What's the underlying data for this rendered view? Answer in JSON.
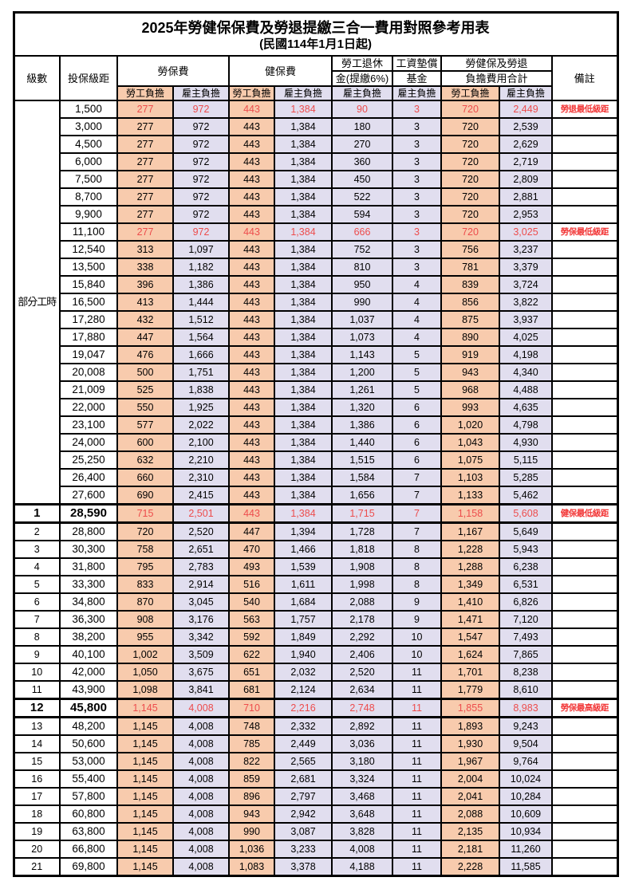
{
  "title": "2025年勞健保保費及勞退提繳三合一費用對照參考用表",
  "subtitle": "(民國114年1月1日起)",
  "headers": {
    "level": "級數",
    "bracket": "投保級距",
    "labor": "勞保費",
    "health": "健保費",
    "pension_line1": "勞工退休",
    "pension_line2": "金(提繳6%)",
    "fund_line1": "工資墊償",
    "fund_line2": "基金",
    "total_line1": "勞健保及勞退",
    "total_line2": "負擔費用合計",
    "note": "備註",
    "employee": "勞工負擔",
    "employer": "雇主負擔"
  },
  "part_time_label": "部分工時",
  "part_time_rowspan": 23,
  "colors": {
    "employee_bg": "#F8CBAD",
    "employer_bg": "#E1DEEF",
    "highlight_value_red": "#ED4C4C",
    "note_red": "#F23535",
    "border_black": "#000000"
  },
  "rows": [
    {
      "level": "",
      "bracket": "1,500",
      "values": [
        "277",
        "972",
        "443",
        "1,384",
        "90",
        "3",
        "720",
        "2,449"
      ],
      "note": "勞退最低級距",
      "red": true,
      "thick": false
    },
    {
      "level": "",
      "bracket": "3,000",
      "values": [
        "277",
        "972",
        "443",
        "1,384",
        "180",
        "3",
        "720",
        "2,539"
      ],
      "note": "",
      "red": false,
      "thick": false
    },
    {
      "level": "",
      "bracket": "4,500",
      "values": [
        "277",
        "972",
        "443",
        "1,384",
        "270",
        "3",
        "720",
        "2,629"
      ],
      "note": "",
      "red": false,
      "thick": false
    },
    {
      "level": "",
      "bracket": "6,000",
      "values": [
        "277",
        "972",
        "443",
        "1,384",
        "360",
        "3",
        "720",
        "2,719"
      ],
      "note": "",
      "red": false,
      "thick": false
    },
    {
      "level": "",
      "bracket": "7,500",
      "values": [
        "277",
        "972",
        "443",
        "1,384",
        "450",
        "3",
        "720",
        "2,809"
      ],
      "note": "",
      "red": false,
      "thick": false
    },
    {
      "level": "",
      "bracket": "8,700",
      "values": [
        "277",
        "972",
        "443",
        "1,384",
        "522",
        "3",
        "720",
        "2,881"
      ],
      "note": "",
      "red": false,
      "thick": false
    },
    {
      "level": "",
      "bracket": "9,900",
      "values": [
        "277",
        "972",
        "443",
        "1,384",
        "594",
        "3",
        "720",
        "2,953"
      ],
      "note": "",
      "red": false,
      "thick": false
    },
    {
      "level": "",
      "bracket": "11,100",
      "values": [
        "277",
        "972",
        "443",
        "1,384",
        "666",
        "3",
        "720",
        "3,025"
      ],
      "note": "勞保最低級距",
      "red": true,
      "thick": false
    },
    {
      "level": "",
      "bracket": "12,540",
      "values": [
        "313",
        "1,097",
        "443",
        "1,384",
        "752",
        "3",
        "756",
        "3,237"
      ],
      "note": "",
      "red": false,
      "thick": false
    },
    {
      "level": "",
      "bracket": "13,500",
      "values": [
        "338",
        "1,182",
        "443",
        "1,384",
        "810",
        "3",
        "781",
        "3,379"
      ],
      "note": "",
      "red": false,
      "thick": false
    },
    {
      "level": "",
      "bracket": "15,840",
      "values": [
        "396",
        "1,386",
        "443",
        "1,384",
        "950",
        "4",
        "839",
        "3,724"
      ],
      "note": "",
      "red": false,
      "thick": false
    },
    {
      "level": "",
      "bracket": "16,500",
      "values": [
        "413",
        "1,444",
        "443",
        "1,384",
        "990",
        "4",
        "856",
        "3,822"
      ],
      "note": "",
      "red": false,
      "thick": false
    },
    {
      "level": "",
      "bracket": "17,280",
      "values": [
        "432",
        "1,512",
        "443",
        "1,384",
        "1,037",
        "4",
        "875",
        "3,937"
      ],
      "note": "",
      "red": false,
      "thick": false
    },
    {
      "level": "",
      "bracket": "17,880",
      "values": [
        "447",
        "1,564",
        "443",
        "1,384",
        "1,073",
        "4",
        "890",
        "4,025"
      ],
      "note": "",
      "red": false,
      "thick": false
    },
    {
      "level": "",
      "bracket": "19,047",
      "values": [
        "476",
        "1,666",
        "443",
        "1,384",
        "1,143",
        "5",
        "919",
        "4,198"
      ],
      "note": "",
      "red": false,
      "thick": false
    },
    {
      "level": "",
      "bracket": "20,008",
      "values": [
        "500",
        "1,751",
        "443",
        "1,384",
        "1,200",
        "5",
        "943",
        "4,340"
      ],
      "note": "",
      "red": false,
      "thick": false
    },
    {
      "level": "",
      "bracket": "21,009",
      "values": [
        "525",
        "1,838",
        "443",
        "1,384",
        "1,261",
        "5",
        "968",
        "4,488"
      ],
      "note": "",
      "red": false,
      "thick": false
    },
    {
      "level": "",
      "bracket": "22,000",
      "values": [
        "550",
        "1,925",
        "443",
        "1,384",
        "1,320",
        "6",
        "993",
        "4,635"
      ],
      "note": "",
      "red": false,
      "thick": false
    },
    {
      "level": "",
      "bracket": "23,100",
      "values": [
        "577",
        "2,022",
        "443",
        "1,384",
        "1,386",
        "6",
        "1,020",
        "4,798"
      ],
      "note": "",
      "red": false,
      "thick": false
    },
    {
      "level": "",
      "bracket": "24,000",
      "values": [
        "600",
        "2,100",
        "443",
        "1,384",
        "1,440",
        "6",
        "1,043",
        "4,930"
      ],
      "note": "",
      "red": false,
      "thick": false
    },
    {
      "level": "",
      "bracket": "25,250",
      "values": [
        "632",
        "2,210",
        "443",
        "1,384",
        "1,515",
        "6",
        "1,075",
        "5,115"
      ],
      "note": "",
      "red": false,
      "thick": false
    },
    {
      "level": "",
      "bracket": "26,400",
      "values": [
        "660",
        "2,310",
        "443",
        "1,384",
        "1,584",
        "7",
        "1,103",
        "5,285"
      ],
      "note": "",
      "red": false,
      "thick": false
    },
    {
      "level": "",
      "bracket": "27,600",
      "values": [
        "690",
        "2,415",
        "443",
        "1,384",
        "1,656",
        "7",
        "1,133",
        "5,462"
      ],
      "note": "",
      "red": false,
      "thick": false
    },
    {
      "level": "1",
      "bracket": "28,590",
      "values": [
        "715",
        "2,501",
        "443",
        "1,384",
        "1,715",
        "7",
        "1,158",
        "5,608"
      ],
      "note": "健保最低級距",
      "red": true,
      "thick": true
    },
    {
      "level": "2",
      "bracket": "28,800",
      "values": [
        "720",
        "2,520",
        "447",
        "1,394",
        "1,728",
        "7",
        "1,167",
        "5,649"
      ],
      "note": "",
      "red": false,
      "thick": false
    },
    {
      "level": "3",
      "bracket": "30,300",
      "values": [
        "758",
        "2,651",
        "470",
        "1,466",
        "1,818",
        "8",
        "1,228",
        "5,943"
      ],
      "note": "",
      "red": false,
      "thick": false
    },
    {
      "level": "4",
      "bracket": "31,800",
      "values": [
        "795",
        "2,783",
        "493",
        "1,539",
        "1,908",
        "8",
        "1,288",
        "6,238"
      ],
      "note": "",
      "red": false,
      "thick": false
    },
    {
      "level": "5",
      "bracket": "33,300",
      "values": [
        "833",
        "2,914",
        "516",
        "1,611",
        "1,998",
        "8",
        "1,349",
        "6,531"
      ],
      "note": "",
      "red": false,
      "thick": false
    },
    {
      "level": "6",
      "bracket": "34,800",
      "values": [
        "870",
        "3,045",
        "540",
        "1,684",
        "2,088",
        "9",
        "1,410",
        "6,826"
      ],
      "note": "",
      "red": false,
      "thick": false
    },
    {
      "level": "7",
      "bracket": "36,300",
      "values": [
        "908",
        "3,176",
        "563",
        "1,757",
        "2,178",
        "9",
        "1,471",
        "7,120"
      ],
      "note": "",
      "red": false,
      "thick": false
    },
    {
      "level": "8",
      "bracket": "38,200",
      "values": [
        "955",
        "3,342",
        "592",
        "1,849",
        "2,292",
        "10",
        "1,547",
        "7,493"
      ],
      "note": "",
      "red": false,
      "thick": false
    },
    {
      "level": "9",
      "bracket": "40,100",
      "values": [
        "1,002",
        "3,509",
        "622",
        "1,940",
        "2,406",
        "10",
        "1,624",
        "7,865"
      ],
      "note": "",
      "red": false,
      "thick": false
    },
    {
      "level": "10",
      "bracket": "42,000",
      "values": [
        "1,050",
        "3,675",
        "651",
        "2,032",
        "2,520",
        "11",
        "1,701",
        "8,238"
      ],
      "note": "",
      "red": false,
      "thick": false
    },
    {
      "level": "11",
      "bracket": "43,900",
      "values": [
        "1,098",
        "3,841",
        "681",
        "2,124",
        "2,634",
        "11",
        "1,779",
        "8,610"
      ],
      "note": "",
      "red": false,
      "thick": false
    },
    {
      "level": "12",
      "bracket": "45,800",
      "values": [
        "1,145",
        "4,008",
        "710",
        "2,216",
        "2,748",
        "11",
        "1,855",
        "8,983"
      ],
      "note": "勞保最高級距",
      "red": true,
      "thick": true
    },
    {
      "level": "13",
      "bracket": "48,200",
      "values": [
        "1,145",
        "4,008",
        "748",
        "2,332",
        "2,892",
        "11",
        "1,893",
        "9,243"
      ],
      "note": "",
      "red": false,
      "thick": false
    },
    {
      "level": "14",
      "bracket": "50,600",
      "values": [
        "1,145",
        "4,008",
        "785",
        "2,449",
        "3,036",
        "11",
        "1,930",
        "9,504"
      ],
      "note": "",
      "red": false,
      "thick": false
    },
    {
      "level": "15",
      "bracket": "53,000",
      "values": [
        "1,145",
        "4,008",
        "822",
        "2,565",
        "3,180",
        "11",
        "1,967",
        "9,764"
      ],
      "note": "",
      "red": false,
      "thick": false
    },
    {
      "level": "16",
      "bracket": "55,400",
      "values": [
        "1,145",
        "4,008",
        "859",
        "2,681",
        "3,324",
        "11",
        "2,004",
        "10,024"
      ],
      "note": "",
      "red": false,
      "thick": false
    },
    {
      "level": "17",
      "bracket": "57,800",
      "values": [
        "1,145",
        "4,008",
        "896",
        "2,797",
        "3,468",
        "11",
        "2,041",
        "10,284"
      ],
      "note": "",
      "red": false,
      "thick": false
    },
    {
      "level": "18",
      "bracket": "60,800",
      "values": [
        "1,145",
        "4,008",
        "943",
        "2,942",
        "3,648",
        "11",
        "2,088",
        "10,609"
      ],
      "note": "",
      "red": false,
      "thick": false
    },
    {
      "level": "19",
      "bracket": "63,800",
      "values": [
        "1,145",
        "4,008",
        "990",
        "3,087",
        "3,828",
        "11",
        "2,135",
        "10,934"
      ],
      "note": "",
      "red": false,
      "thick": false
    },
    {
      "level": "20",
      "bracket": "66,800",
      "values": [
        "1,145",
        "4,008",
        "1,036",
        "3,233",
        "4,008",
        "11",
        "2,181",
        "11,260"
      ],
      "note": "",
      "red": false,
      "thick": false
    },
    {
      "level": "21",
      "bracket": "69,800",
      "values": [
        "1,145",
        "4,008",
        "1,083",
        "3,378",
        "4,188",
        "11",
        "2,228",
        "11,585"
      ],
      "note": "",
      "red": false,
      "thick": false
    }
  ]
}
